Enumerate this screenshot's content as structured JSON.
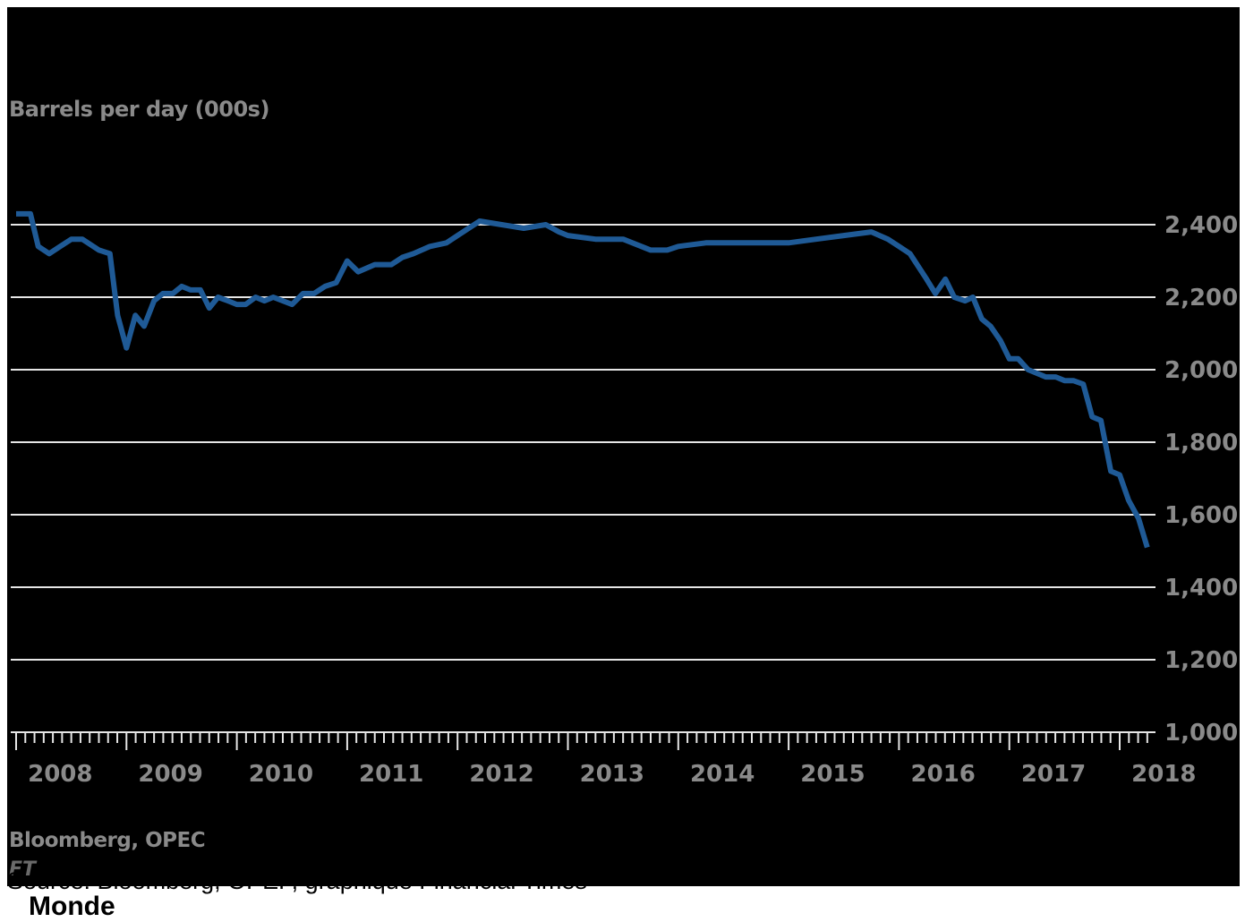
{
  "chart_data": {
    "type": "line",
    "ylabel": "Barrels per day (000s)",
    "ylim": [
      1000,
      2400
    ],
    "yticks": [
      1000,
      1200,
      1400,
      1600,
      1800,
      2000,
      2200,
      2400
    ],
    "ytick_labels": [
      "1,000",
      "1,200",
      "1,400",
      "1,600",
      "1,800",
      "2,000",
      "2,200",
      "2,400"
    ],
    "xlim": [
      2008.0,
      2018.3
    ],
    "xticks": [
      2008,
      2009,
      2010,
      2011,
      2012,
      2013,
      2014,
      2015,
      2016,
      2017,
      2018
    ],
    "grid": true,
    "series": [
      {
        "color": "#1f5a96",
        "x": [
          2008.0,
          2008.13,
          2008.2,
          2008.3,
          2008.4,
          2008.5,
          2008.6,
          2008.75,
          2008.85,
          2008.92,
          2009.0,
          2009.08,
          2009.16,
          2009.25,
          2009.33,
          2009.42,
          2009.5,
          2009.58,
          2009.67,
          2009.75,
          2009.83,
          2009.92,
          2010.0,
          2010.08,
          2010.17,
          2010.25,
          2010.33,
          2010.5,
          2010.6,
          2010.7,
          2010.8,
          2010.9,
          2011.0,
          2011.1,
          2011.25,
          2011.4,
          2011.5,
          2011.6,
          2011.75,
          2011.9,
          2012.0,
          2012.2,
          2012.4,
          2012.6,
          2012.8,
          2012.92,
          2013.0,
          2013.25,
          2013.5,
          2013.75,
          2013.9,
          2014.0,
          2014.25,
          2014.5,
          2014.75,
          2015.0,
          2015.25,
          2015.5,
          2015.75,
          2015.9,
          2016.0,
          2016.1,
          2016.25,
          2016.33,
          2016.42,
          2016.5,
          2016.6,
          2016.67,
          2016.75,
          2016.83,
          2016.92,
          2017.0,
          2017.08,
          2017.17,
          2017.25,
          2017.33,
          2017.42,
          2017.5,
          2017.58,
          2017.67,
          2017.75,
          2017.83,
          2017.92,
          2018.0,
          2018.08,
          2018.17,
          2018.25
        ],
        "values": [
          2430,
          2430,
          2340,
          2320,
          2340,
          2360,
          2360,
          2330,
          2320,
          2150,
          2060,
          2150,
          2120,
          2190,
          2210,
          2210,
          2230,
          2220,
          2220,
          2170,
          2200,
          2190,
          2180,
          2180,
          2200,
          2190,
          2200,
          2180,
          2210,
          2210,
          2230,
          2240,
          2300,
          2270,
          2290,
          2290,
          2310,
          2320,
          2340,
          2350,
          2370,
          2410,
          2400,
          2390,
          2400,
          2380,
          2370,
          2360,
          2360,
          2330,
          2330,
          2340,
          2350,
          2350,
          2350,
          2350,
          2360,
          2370,
          2380,
          2360,
          2340,
          2320,
          2250,
          2210,
          2250,
          2200,
          2190,
          2200,
          2140,
          2120,
          2080,
          2030,
          2030,
          2000,
          1990,
          1980,
          1980,
          1970,
          1970,
          1960,
          1870,
          1860,
          1720,
          1710,
          1640,
          1590,
          1510
        ]
      }
    ]
  },
  "source_note": "Bloomberg, OPEC",
  "ft_logo": "FT",
  "caption": "Source: Bloomberg, OPEP, graphique Financial Times",
  "publisher": "Monde",
  "colors": {
    "background": "#000000",
    "line": "#1f5a96",
    "grid": "#e6e6e6",
    "axis_text": "#8a8a8a"
  }
}
